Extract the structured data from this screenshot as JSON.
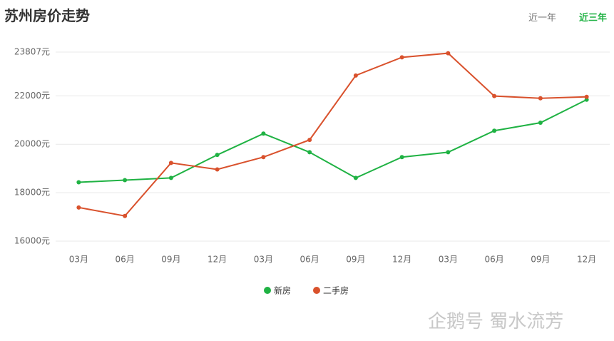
{
  "header": {
    "title": "苏州房价走势",
    "tabs": [
      "近一年",
      "近三年"
    ],
    "active_tab": 1
  },
  "chart_data": {
    "type": "line",
    "categories": [
      "03月",
      "06月",
      "09月",
      "12月",
      "03月",
      "06月",
      "09月",
      "12月",
      "03月",
      "06月",
      "09月",
      "12月"
    ],
    "series": [
      {
        "name": "新房",
        "color": "#1fb243",
        "values": [
          18430,
          18520,
          18610,
          19560,
          20440,
          19670,
          18610,
          19470,
          19670,
          20560,
          20890,
          21840
        ]
      },
      {
        "name": "二手房",
        "color": "#d9512c",
        "values": [
          17390,
          17040,
          19230,
          18960,
          19470,
          20180,
          22840,
          23590,
          23760,
          21990,
          21900,
          21960
        ]
      }
    ],
    "ylim": [
      16000,
      23807
    ],
    "yticks": [
      {
        "value": 16000,
        "label": "16000元"
      },
      {
        "value": 18000,
        "label": "18000元"
      },
      {
        "value": 20000,
        "label": "20000元"
      },
      {
        "value": 22000,
        "label": "22000元"
      },
      {
        "value": 23807,
        "label": "23807元"
      }
    ],
    "grid": true,
    "legend": "bottom"
  },
  "watermark": "企鹅号 蜀水流芳"
}
